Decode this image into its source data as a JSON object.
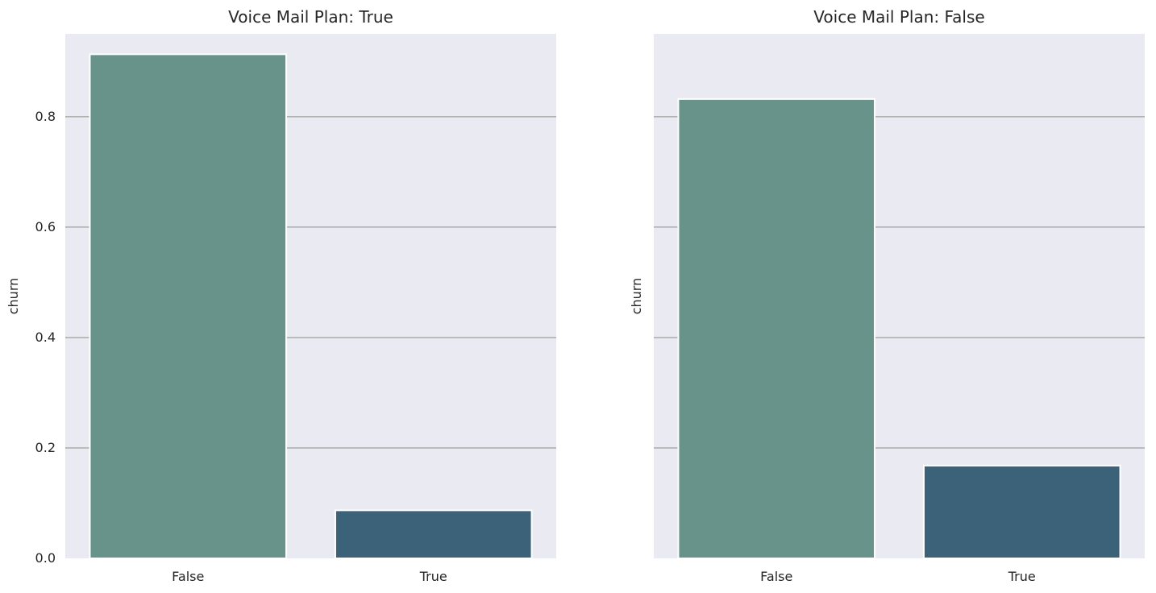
{
  "chart_data": [
    {
      "type": "bar",
      "title": "Voice Mail Plan: True",
      "xlabel": "",
      "ylabel": "churn",
      "categories": [
        "False",
        "True"
      ],
      "values": [
        0.913,
        0.087
      ],
      "colors": [
        "#67938a",
        "#3b6279"
      ],
      "ylim": [
        0,
        0.95
      ],
      "yticks": [
        0.0,
        0.2,
        0.4,
        0.6,
        0.8
      ],
      "ytick_labels": [
        "0.0",
        "0.2",
        "0.4",
        "0.6",
        "0.8"
      ],
      "grid": true,
      "background": "#eaeaf2"
    },
    {
      "type": "bar",
      "title": "Voice Mail Plan: False",
      "xlabel": "",
      "ylabel": "churn",
      "categories": [
        "False",
        "True"
      ],
      "values": [
        0.832,
        0.168
      ],
      "colors": [
        "#67938a",
        "#3b6279"
      ],
      "ylim": [
        0,
        0.95
      ],
      "yticks": [
        0.0,
        0.2,
        0.4,
        0.6,
        0.8
      ],
      "ytick_labels": [
        "",
        "",
        "",
        "",
        ""
      ],
      "grid": true,
      "background": "#eaeaf2"
    }
  ]
}
